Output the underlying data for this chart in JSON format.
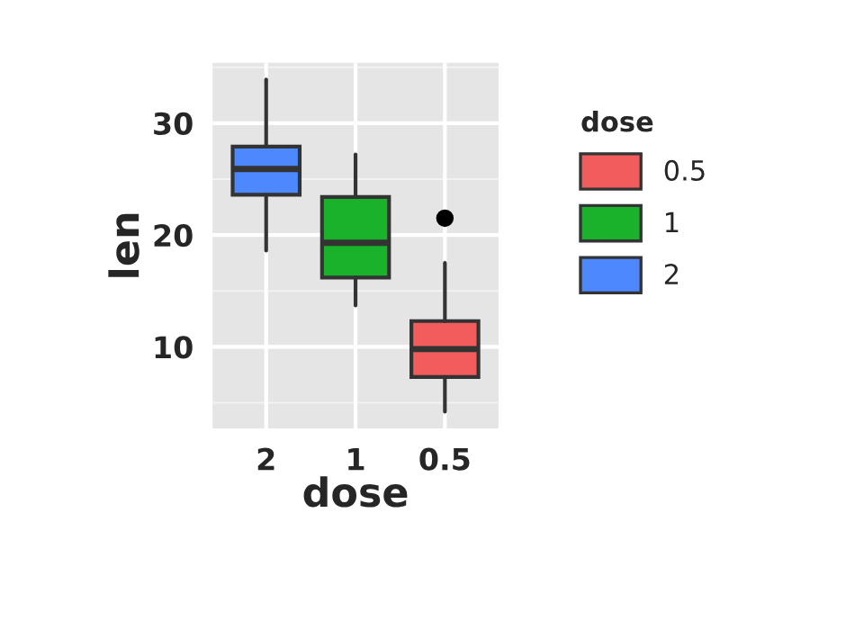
{
  "chart_data": {
    "type": "box",
    "xlabel": "dose",
    "ylabel": "len",
    "legend_title": "dose",
    "legend": "right",
    "grid": true,
    "categories": [
      "2",
      "1",
      "0.5"
    ],
    "series": [
      {
        "name": "0.5",
        "color": "#f25c5c",
        "boxes": [
          null,
          null,
          {
            "low": 4.2,
            "q1": 7.3,
            "median": 9.8,
            "q3": 12.3,
            "high": 17.5,
            "outliers": [
              21.5
            ]
          }
        ]
      },
      {
        "name": "1",
        "color": "#1ab22a",
        "boxes": [
          null,
          {
            "low": 13.7,
            "q1": 16.2,
            "median": 19.3,
            "q3": 23.4,
            "high": 27.2
          },
          null
        ]
      },
      {
        "name": "2",
        "color": "#4d88ff",
        "boxes": [
          {
            "low": 18.6,
            "q1": 23.6,
            "median": 25.9,
            "q3": 27.9,
            "high": 33.9
          },
          null,
          null
        ]
      }
    ],
    "ylim": [
      2.7,
      35.4
    ],
    "yticks": [
      10,
      20,
      30
    ]
  }
}
